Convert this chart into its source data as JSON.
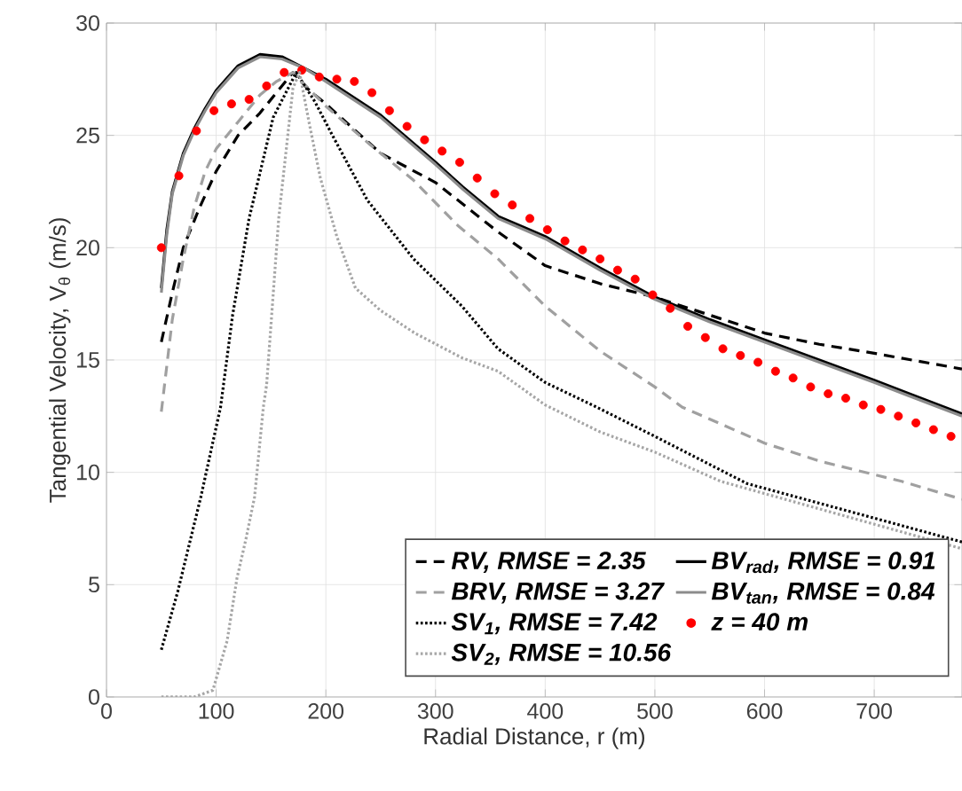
{
  "chart_data": {
    "type": "line",
    "xlabel": "Radial Distance, r (m)",
    "ylabel": "Tangential Velocity, V$_{θ}$ (m/s)",
    "xlim": [
      0,
      780
    ],
    "ylim": [
      0,
      30
    ],
    "xticks": [
      0,
      100,
      200,
      300,
      400,
      500,
      600,
      700
    ],
    "yticks": [
      0,
      5,
      10,
      15,
      20,
      25,
      30
    ],
    "grid": true,
    "legend": "bottom right",
    "series": [
      {
        "name": "RV, RMSE = 2.35",
        "color": "#000000",
        "line_style": "dashed",
        "x": [
          50,
          60,
          70,
          85,
          100,
          120,
          140,
          155,
          170,
          185,
          200,
          250,
          300,
          357,
          400,
          450,
          500,
          550,
          600,
          650,
          700,
          780
        ],
        "values": [
          15.8,
          18.0,
          20.0,
          21.8,
          23.4,
          25.0,
          26.0,
          26.9,
          27.8,
          27.0,
          26.4,
          24.2,
          22.9,
          20.7,
          19.2,
          18.4,
          17.8,
          17.0,
          16.2,
          15.7,
          15.3,
          14.6
        ]
      },
      {
        "name": "BRV, RMSE = 3.27",
        "color": "#a0a0a0",
        "line_style": "dashed",
        "x": [
          50,
          60,
          70,
          80,
          90,
          100,
          120,
          140,
          155,
          170,
          200,
          240,
          280,
          320,
          357,
          400,
          450,
          500,
          525,
          600,
          650,
          700,
          725,
          780
        ],
        "values": [
          12.7,
          16.8,
          19.5,
          21.8,
          23.4,
          24.4,
          25.6,
          26.8,
          27.4,
          27.8,
          26.3,
          24.6,
          23.0,
          21.0,
          19.5,
          17.4,
          15.4,
          13.8,
          12.9,
          11.3,
          10.5,
          9.9,
          9.6,
          8.8
        ]
      },
      {
        "name": "SV$_{1}$, RMSE = 7.42",
        "color": "#000000",
        "line_style": "dotted",
        "x": [
          50,
          65,
          86,
          104,
          115,
          130,
          152,
          173,
          190,
          206,
          238,
          280,
          324,
          357,
          400,
          447,
          500,
          584,
          780
        ],
        "values": [
          2.1,
          4.7,
          8.9,
          12.9,
          17.0,
          21.3,
          25.8,
          27.8,
          26.5,
          25.0,
          22.1,
          19.5,
          17.4,
          15.5,
          14.0,
          12.9,
          11.6,
          9.5,
          6.9
        ]
      },
      {
        "name": "SV$_{2}$, RMSE = 10.56",
        "color": "#a6a6a6",
        "line_style": "dotted",
        "x": [
          50,
          80,
          97,
          110,
          119,
          127,
          135,
          143,
          146,
          157,
          170,
          176,
          185,
          195,
          210,
          227,
          250,
          281,
          324,
          357,
          400,
          450,
          500,
          560,
          780
        ],
        "values": [
          0,
          0,
          0.3,
          2.5,
          5.3,
          7.0,
          8.9,
          12.9,
          13.9,
          21.3,
          27.1,
          27.8,
          25.5,
          23.1,
          20.5,
          18.2,
          17.2,
          16.2,
          15.1,
          14.5,
          13.0,
          11.8,
          10.9,
          9.6,
          6.6
        ]
      },
      {
        "name": "BV$_{rad}$, RMSE = 0.91",
        "color": "#000000",
        "line_style": "solid",
        "x": [
          50,
          55,
          60,
          70,
          80,
          90,
          100,
          120,
          140,
          160,
          180,
          200,
          250,
          300,
          325,
          357,
          400,
          450,
          500,
          550,
          600,
          650,
          700,
          780
        ],
        "values": [
          18.2,
          20.8,
          22.5,
          24.2,
          25.3,
          26.2,
          27.0,
          28.1,
          28.6,
          28.5,
          28.0,
          27.5,
          25.9,
          23.8,
          22.7,
          21.4,
          20.5,
          19.1,
          17.8,
          16.8,
          15.9,
          15.0,
          14.1,
          12.6
        ]
      },
      {
        "name": "BV$_{tan}$, RMSE = 0.84",
        "color": "#8c8c8c",
        "line_style": "solid",
        "x": [
          50,
          55,
          60,
          70,
          80,
          90,
          100,
          120,
          140,
          160,
          180,
          200,
          250,
          300,
          325,
          357,
          400,
          450,
          500,
          550,
          600,
          650,
          700,
          780
        ],
        "values": [
          18.0,
          20.6,
          22.4,
          24.1,
          25.2,
          26.1,
          26.9,
          28.0,
          28.5,
          28.4,
          28.0,
          27.4,
          25.8,
          23.7,
          22.6,
          21.3,
          20.4,
          19.0,
          17.7,
          16.7,
          15.8,
          14.9,
          14.0,
          12.5
        ]
      },
      {
        "name": "z = 40 m",
        "type": "scatter",
        "marker": "circle",
        "color": "#ff0000",
        "x": [
          50,
          66,
          82,
          98,
          114,
          130,
          146,
          162,
          178,
          194,
          210,
          226,
          242,
          258,
          274,
          290,
          306,
          322,
          338,
          354,
          370,
          386,
          402,
          418,
          434,
          450,
          466,
          482,
          498,
          514,
          530,
          546,
          562,
          578,
          594,
          610,
          626,
          642,
          658,
          674,
          690,
          706,
          722,
          738,
          754,
          770
        ],
        "values": [
          20.0,
          23.2,
          25.2,
          26.1,
          26.4,
          26.6,
          27.2,
          27.8,
          27.9,
          27.6,
          27.5,
          27.4,
          26.9,
          26.1,
          25.4,
          24.8,
          24.3,
          23.8,
          23.1,
          22.4,
          21.9,
          21.3,
          20.8,
          20.3,
          19.9,
          19.5,
          19.0,
          18.6,
          17.9,
          17.3,
          16.5,
          16.0,
          15.5,
          15.2,
          14.9,
          14.5,
          14.2,
          13.8,
          13.5,
          13.3,
          13.0,
          12.8,
          12.5,
          12.2,
          11.9,
          11.6
        ]
      }
    ]
  }
}
